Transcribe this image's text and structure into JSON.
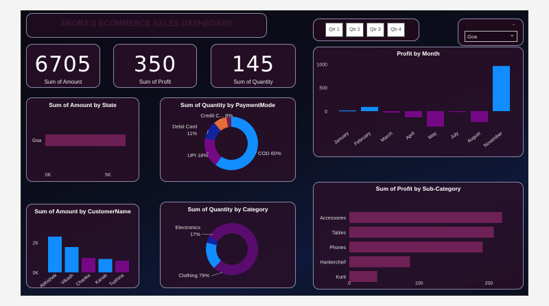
{
  "header": {
    "title": "ARORA'S  ECOMMERCE SALES DASHBOARD"
  },
  "quarters": [
    "Qtr 1",
    "Qtr 2",
    "Qtr 3",
    "Qtr 4"
  ],
  "state_filter": {
    "label": "State",
    "selected": "Goa"
  },
  "kpis": [
    {
      "value": "6705",
      "label": "Sum of Amount"
    },
    {
      "value": "350",
      "label": "Sum of Profit"
    },
    {
      "value": "145",
      "label": "Sum of Quantity"
    }
  ],
  "colors": {
    "blue": "#118dff",
    "purple": "#750985",
    "magenta": "#6b1b55",
    "orange": "#e66c37",
    "navy": "#12239e",
    "sub_bar": "#6e2156",
    "state_bar": "#6b1f52"
  },
  "chart_data": [
    {
      "id": "amount_by_state",
      "type": "bar",
      "orientation": "horizontal",
      "title": "Sum of Amount by State",
      "categories": [
        "Goa"
      ],
      "values": [
        6705
      ],
      "xlim": [
        0,
        7500
      ],
      "xticks": [
        {
          "value": 0,
          "label": "0K"
        },
        {
          "value": 5000,
          "label": "5K"
        }
      ]
    },
    {
      "id": "quantity_by_paymentmode",
      "type": "pie",
      "donut": true,
      "title": "Sum of Quantity by PaymentMode",
      "slices": [
        {
          "name": "COD",
          "label": "COD 60%",
          "percent": 60,
          "color": "#118dff"
        },
        {
          "name": "UPI",
          "label": "UPI 18%",
          "percent": 18,
          "color": "#750985"
        },
        {
          "name": "Debit Card",
          "label": "Debit Card 11%",
          "percent": 11,
          "color": "#12239e"
        },
        {
          "name": "Credit Card",
          "label": "Credit C... 8%",
          "percent": 8,
          "color": "#e66c37"
        },
        {
          "name": "EMI",
          "label": "",
          "percent": 3,
          "color": "#6b1b55"
        }
      ]
    },
    {
      "id": "profit_by_month",
      "type": "bar",
      "title": "Profit by Month",
      "categories": [
        "January",
        "February",
        "March",
        "April",
        "May",
        "July",
        "August",
        "November"
      ],
      "values": [
        15,
        90,
        -30,
        -130,
        -330,
        -20,
        -230,
        960
      ],
      "colors": [
        "#118dff",
        "#118dff",
        "#750985",
        "#750985",
        "#750985",
        "#750985",
        "#750985",
        "#118dff"
      ],
      "ylim": [
        -350,
        1050
      ],
      "yticks": [
        0,
        500,
        1000
      ]
    },
    {
      "id": "profit_by_subcategory",
      "type": "bar",
      "orientation": "horizontal",
      "title": "Sum of Profit by Sub-Category",
      "categories": [
        "Accessories",
        "Tables",
        "Phones",
        "Hankerchief",
        "Kurti"
      ],
      "values": [
        219,
        207,
        191,
        87,
        40
      ],
      "xlim": [
        0,
        230
      ],
      "xticks": [
        0,
        100,
        200
      ]
    },
    {
      "id": "amount_by_customername",
      "type": "bar",
      "title": "Sum of Amount by CustomerName",
      "categories": [
        "Abhishek",
        "Vikash",
        "Charika",
        "Kanak",
        "Tushina"
      ],
      "values": [
        2400,
        1700,
        970,
        900,
        780
      ],
      "colors": [
        "#118dff",
        "#118dff",
        "#750985",
        "#118dff",
        "#750985"
      ],
      "ylim": [
        0,
        2900
      ],
      "yticks": [
        {
          "value": 0,
          "label": "0K"
        },
        {
          "value": 2000,
          "label": "2K"
        }
      ]
    },
    {
      "id": "quantity_by_category",
      "type": "pie",
      "donut": true,
      "title": "Sum of Quantity by Category",
      "slices": [
        {
          "name": "Clothing",
          "label": "Clothing 79%",
          "percent": 79,
          "color": "#5a0c6e"
        },
        {
          "name": "Electronics",
          "label": "Electronics 17%",
          "percent": 17,
          "color": "#118dff"
        },
        {
          "name": "Furniture",
          "label": "",
          "percent": 4,
          "color": "#12239e"
        }
      ]
    }
  ]
}
